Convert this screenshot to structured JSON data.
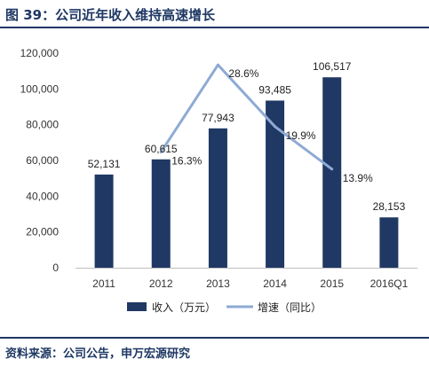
{
  "header": {
    "title": "图 39：公司近年收入维持高速增长"
  },
  "footer": {
    "source": "资料来源：公司公告，申万宏源研究"
  },
  "colors": {
    "bar": "#1f3864",
    "line": "#8eaad4",
    "rule": "#1f3864"
  },
  "chart_data": {
    "type": "bar",
    "title": "",
    "xlabel": "",
    "ylabel": "",
    "categories": [
      "2011",
      "2012",
      "2013",
      "2014",
      "2015",
      "2016Q1"
    ],
    "ylim": [
      0,
      120000
    ],
    "yticks": [
      "0",
      "20,000",
      "40,000",
      "60,000",
      "80,000",
      "100,000",
      "120,000"
    ],
    "grid": false,
    "legend_position": "bottom",
    "series": [
      {
        "name": "收入（万元）",
        "kind": "bar",
        "values": [
          52131,
          60615,
          77943,
          93485,
          106517,
          28153
        ],
        "labels": [
          "52,131",
          "60,615",
          "77,943",
          "93,485",
          "106,517",
          "28,153"
        ]
      },
      {
        "name": "增速（同比）",
        "kind": "line",
        "values": [
          null,
          0.163,
          0.286,
          0.199,
          0.139,
          null
        ],
        "labels": [
          "",
          "16.3%",
          "28.6%",
          "19.9%",
          "13.9%",
          ""
        ]
      }
    ]
  }
}
